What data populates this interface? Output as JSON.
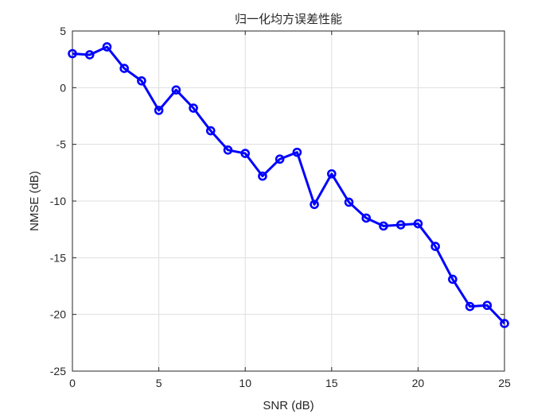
{
  "chart_data": {
    "type": "line",
    "title": "归一化均方误差性能",
    "xlabel": "SNR (dB)",
    "ylabel": "NMSE (dB)",
    "xlim": [
      0,
      25
    ],
    "ylim": [
      -25,
      5
    ],
    "xticks": [
      0,
      5,
      10,
      15,
      20,
      25
    ],
    "yticks": [
      -25,
      -20,
      -15,
      -10,
      -5,
      0,
      5
    ],
    "grid": true,
    "series": [
      {
        "color": "#0000ff",
        "marker": "circle",
        "x": [
          0,
          1,
          2,
          3,
          4,
          5,
          6,
          7,
          8,
          9,
          10,
          11,
          12,
          13,
          14,
          15,
          16,
          17,
          18,
          19,
          20,
          21,
          22,
          23,
          24,
          25
        ],
        "y": [
          3.0,
          2.9,
          3.6,
          1.7,
          0.6,
          -2.0,
          -0.2,
          -1.8,
          -3.8,
          -5.5,
          -5.8,
          -7.8,
          -6.3,
          -5.7,
          -10.3,
          -7.6,
          -10.1,
          -11.5,
          -12.2,
          -12.1,
          -12.0,
          -14.0,
          -16.9,
          -19.3,
          -19.2,
          -20.8
        ]
      }
    ]
  }
}
